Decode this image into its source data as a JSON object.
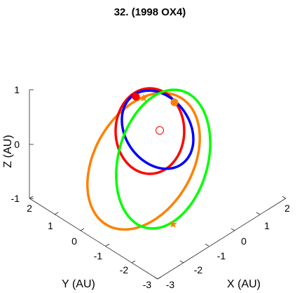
{
  "chart_data": {
    "type": "line",
    "title": "32. (1998 OX4)",
    "projection": "3d",
    "xlabel": "X (AU)",
    "ylabel": "Y (AU)",
    "zlabel": "Z (AU)",
    "xlim": [
      -3,
      2
    ],
    "ylim": [
      -3,
      2
    ],
    "zlim": [
      -1,
      1
    ],
    "xticks": [
      "-3",
      "-2",
      "-1",
      "0",
      "1",
      "2"
    ],
    "yticks": [
      "-3",
      "-2",
      "-1",
      "0",
      "1",
      "2"
    ],
    "zticks": [
      "-1",
      "0",
      "1"
    ],
    "grid": false,
    "series": [
      {
        "color": "#ff8000",
        "kind": "orbit"
      },
      {
        "color": "#ff0000",
        "kind": "orbit"
      },
      {
        "color": "#0000ff",
        "kind": "orbit"
      },
      {
        "color": "#00ff00",
        "kind": "orbit"
      }
    ],
    "markers": [
      {
        "shape": "open-circle",
        "color": "#ff0000",
        "label": "sun"
      },
      {
        "shape": "filled-circle",
        "color": "#ff0000"
      },
      {
        "shape": "filled-circle",
        "color": "#ff8000"
      },
      {
        "shape": "star",
        "color": "#ff8000"
      },
      {
        "shape": "star",
        "color": "#ff8000"
      }
    ]
  }
}
